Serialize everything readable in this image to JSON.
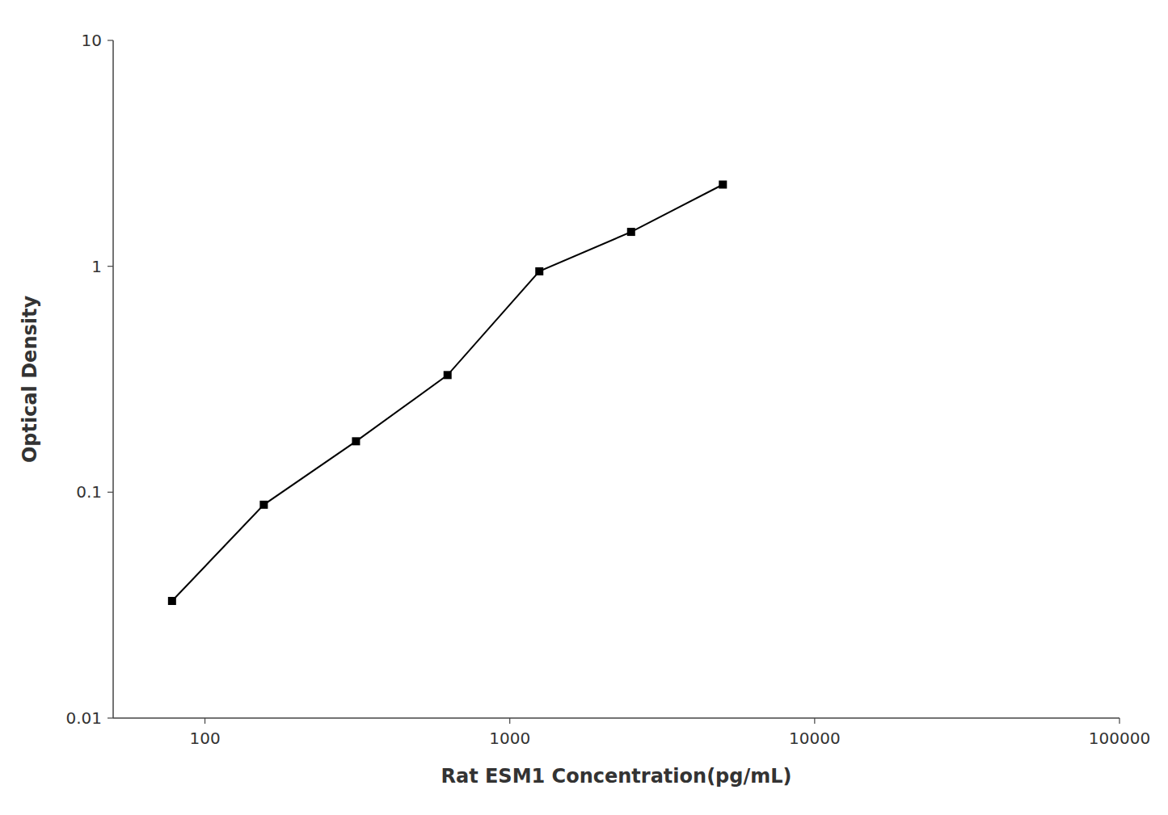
{
  "chart_data": {
    "type": "line",
    "x": [
      78,
      156,
      313,
      625,
      1250,
      2500,
      5000
    ],
    "values": [
      0.033,
      0.088,
      0.168,
      0.33,
      0.95,
      1.42,
      2.3
    ],
    "xlabel": "Rat ESM1 Concentration(pg/mL)",
    "ylabel": "Optical Density",
    "xlim": [
      50,
      100000
    ],
    "ylim": [
      0.01,
      10
    ],
    "xticks": [
      100,
      1000,
      10000,
      100000
    ],
    "yticks": [
      0.01,
      0.1,
      1,
      10
    ],
    "log": true,
    "color": "#000000",
    "marker": "square"
  }
}
